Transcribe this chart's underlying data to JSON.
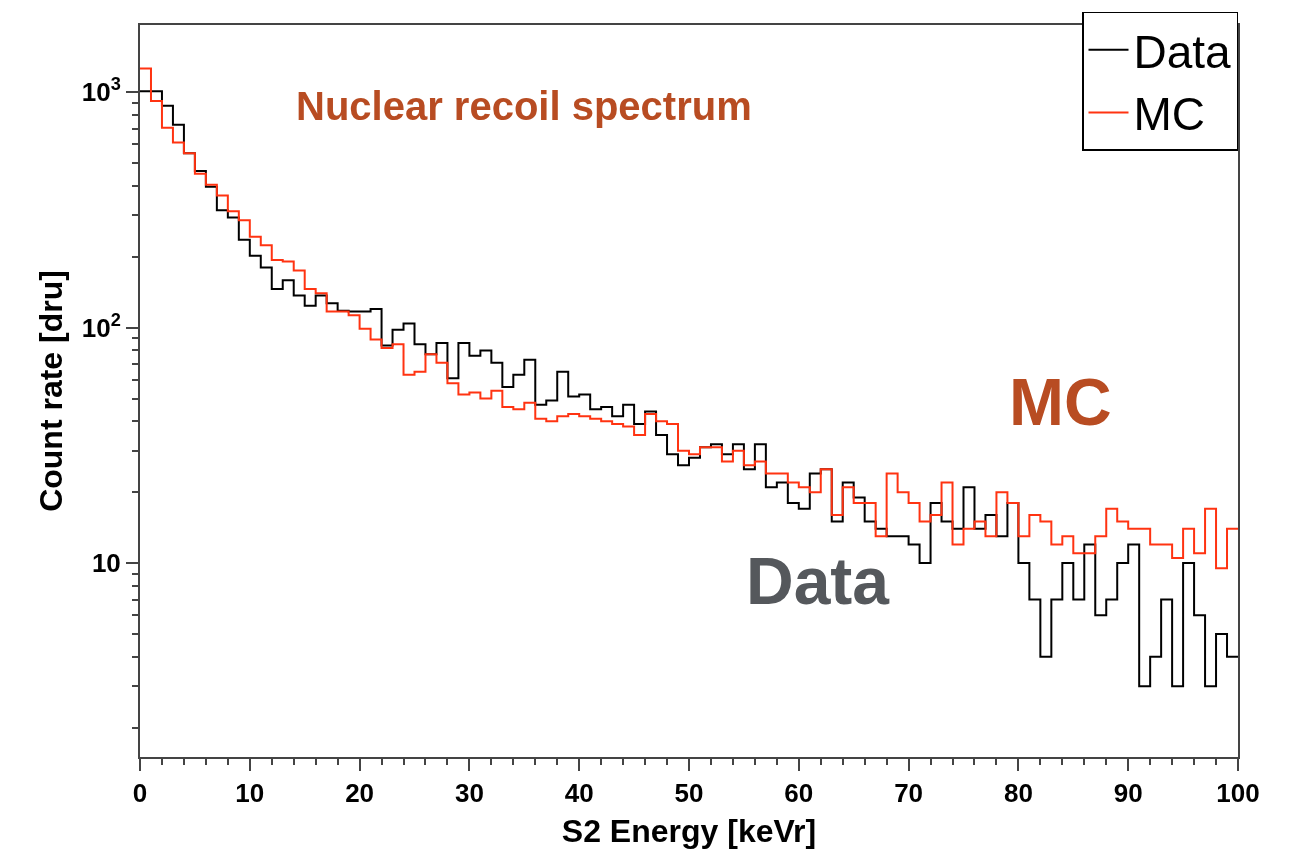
{
  "chart_data": {
    "type": "histogram",
    "xlabel": "S2 Energy [keVr]",
    "ylabel": "Count rate [dru]",
    "annotations": [
      "Nuclear recoil spectrum",
      "MC",
      "Data"
    ],
    "bins": [
      0,
      1,
      2,
      3,
      4,
      5,
      6,
      7,
      8,
      9,
      10,
      11,
      12,
      13,
      14,
      15,
      16,
      17,
      18,
      19,
      20,
      21,
      22,
      23,
      24,
      25,
      26,
      27,
      28,
      29,
      30,
      31,
      32,
      33,
      34,
      35,
      36,
      37,
      38,
      39,
      40,
      41,
      42,
      43,
      44,
      45,
      46,
      47,
      48,
      49,
      50,
      51,
      52,
      53,
      54,
      55,
      56,
      57,
      58,
      59,
      60,
      61,
      62,
      63,
      64,
      65,
      66,
      67,
      68,
      69,
      70,
      71,
      72,
      73,
      74,
      75,
      76,
      77,
      78,
      79,
      80,
      81,
      82,
      83,
      84,
      85,
      86,
      87,
      88,
      89,
      90,
      91,
      92,
      93,
      94,
      95,
      96,
      97,
      98,
      99,
      100
    ],
    "series": [
      {
        "name": "Data",
        "color": "#000000",
        "values": [
          1010,
          1010,
          877,
          728,
          550,
          463,
          397,
          315,
          294,
          236,
          202,
          180,
          146,
          159,
          137,
          124,
          137,
          127,
          118,
          117,
          117,
          120,
          84,
          98,
          104,
          85,
          77,
          86,
          61,
          86,
          76,
          80,
          71,
          56,
          63,
          73,
          47,
          49,
          65,
          51,
          52,
          45,
          46,
          42,
          47,
          39,
          44,
          35,
          29,
          26,
          28,
          31,
          32,
          29,
          32,
          25,
          32,
          21,
          22,
          18,
          17,
          24,
          25,
          15,
          22,
          19,
          15,
          14,
          13,
          13,
          12,
          10,
          18,
          15,
          14,
          21,
          14,
          16,
          13,
          18,
          10,
          7,
          4,
          7,
          10,
          7,
          12,
          6,
          7,
          10,
          12,
          3,
          4,
          7,
          3,
          10,
          6,
          3,
          5,
          4
        ]
      },
      {
        "name": "MC",
        "color": "#ff3311",
        "values": [
          1260,
          917,
          707,
          612,
          550,
          450,
          405,
          364,
          312,
          286,
          243,
          224,
          194,
          191,
          175,
          146,
          140,
          117,
          117,
          113,
          99,
          89,
          82,
          85,
          63,
          65,
          77,
          71,
          58,
          52,
          53,
          50,
          54,
          46,
          45,
          48,
          41,
          40,
          42,
          43,
          42,
          41,
          40,
          39,
          38,
          35,
          43,
          40,
          39,
          30,
          29,
          31,
          31,
          27,
          30,
          26,
          27,
          24,
          24,
          22,
          21,
          20,
          25,
          16,
          21,
          18,
          18,
          13,
          24,
          20,
          18,
          15,
          16,
          22,
          12,
          14,
          15,
          13,
          20,
          18,
          13,
          16,
          15,
          12,
          13,
          11,
          11,
          13,
          17,
          15,
          14,
          14,
          12,
          12,
          10.5,
          14,
          11,
          17,
          9.5,
          14
        ]
      }
    ],
    "xlim": [
      0,
      100
    ],
    "xticks": [
      0,
      10,
      20,
      30,
      40,
      50,
      60,
      70,
      80,
      90,
      100
    ],
    "ylim": [
      1.5,
      1930
    ],
    "yticks": [
      {
        "value": 10,
        "label": "10"
      },
      {
        "value": 100,
        "label": "10$^{2}$"
      },
      {
        "value": 1000,
        "label": "10$^{3}$"
      }
    ],
    "log": "y",
    "legend": "top right",
    "line_style": "solid",
    "marker": "none"
  }
}
